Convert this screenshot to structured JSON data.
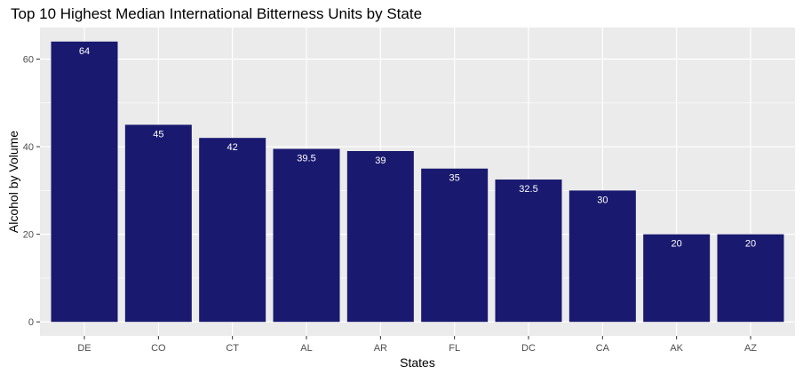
{
  "chart_data": {
    "type": "bar",
    "title": "Top 10 Highest Median International Bitterness Units by State",
    "xlabel": "States",
    "ylabel": "Alcohol by Volume",
    "categories": [
      "DE",
      "CO",
      "CT",
      "AL",
      "AR",
      "FL",
      "DC",
      "CA",
      "AK",
      "AZ"
    ],
    "values": [
      64,
      45,
      42,
      39.5,
      39,
      35,
      32.5,
      30,
      20,
      20
    ],
    "data_labels": [
      "64",
      "45",
      "42",
      "39.5",
      "39",
      "35",
      "32.5",
      "30",
      "20",
      "20"
    ],
    "ylim": [
      -3.2,
      67.2
    ],
    "yticks": [
      0,
      20,
      40,
      60
    ],
    "yticks_minor": [
      10,
      30,
      50
    ],
    "grid": true,
    "legend": "none",
    "bar_color": "#191970",
    "panel_background": "#ebebeb",
    "grid_color": "#ffffff"
  }
}
